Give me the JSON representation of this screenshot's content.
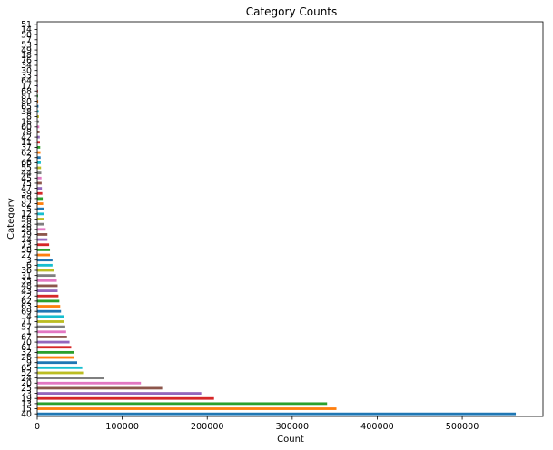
{
  "chart_data": {
    "type": "bar",
    "orientation": "horizontal",
    "title": "Category Counts",
    "xlabel": "Count",
    "ylabel": "Category",
    "xlim": [
      0,
      595000
    ],
    "xticks": [
      0,
      100000,
      200000,
      300000,
      400000,
      500000
    ],
    "xtick_labels": [
      "0",
      "100000",
      "200000",
      "300000",
      "400000",
      "500000"
    ],
    "grid": false,
    "legend": "none",
    "categories": [
      "40",
      "15",
      "13",
      "19",
      "23",
      "25",
      "20",
      "24",
      "52",
      "65",
      "9",
      "26",
      "32",
      "61",
      "70",
      "67",
      "1",
      "57",
      "71",
      "4",
      "69",
      "63",
      "62",
      "22",
      "43",
      "48",
      "35",
      "31",
      "36",
      "6",
      "3",
      "27",
      "58",
      "73",
      "74",
      "79",
      "29",
      "28",
      "56",
      "12",
      "5",
      "82",
      "59",
      "39",
      "47",
      "75",
      "45",
      "44",
      "55",
      "66",
      "2",
      "62",
      "37",
      "11",
      "42",
      "78",
      "60",
      "16",
      "8",
      "38",
      "65",
      "80",
      "81",
      "68",
      "17",
      "64",
      "33",
      "30",
      "34",
      "76",
      "18",
      "49",
      "53",
      "7",
      "50",
      "14",
      "51"
    ],
    "values": [
      563000,
      352000,
      341000,
      208000,
      193000,
      147000,
      122000,
      79000,
      54000,
      53000,
      47000,
      43000,
      43000,
      40000,
      38000,
      35000,
      34000,
      33000,
      32000,
      31000,
      28000,
      27000,
      26000,
      25000,
      24000,
      24000,
      23000,
      22000,
      20000,
      18000,
      18000,
      15000,
      15000,
      14000,
      12000,
      12000,
      10000,
      8500,
      8000,
      7800,
      7500,
      7000,
      6500,
      6000,
      5500,
      5200,
      5000,
      4800,
      4500,
      4200,
      4000,
      3800,
      3500,
      3200,
      3000,
      2800,
      2500,
      2200,
      2000,
      1800,
      1500,
      1200,
      1000,
      900,
      800,
      700,
      600,
      500,
      450,
      400,
      350,
      300,
      250,
      200,
      150,
      100,
      50
    ],
    "colors": [
      "#1f77b4",
      "#ff7f0e",
      "#2ca02c",
      "#d62728",
      "#9467bd",
      "#8c564b",
      "#e377c2",
      "#7f7f7f",
      "#bcbd22",
      "#17becf"
    ]
  }
}
